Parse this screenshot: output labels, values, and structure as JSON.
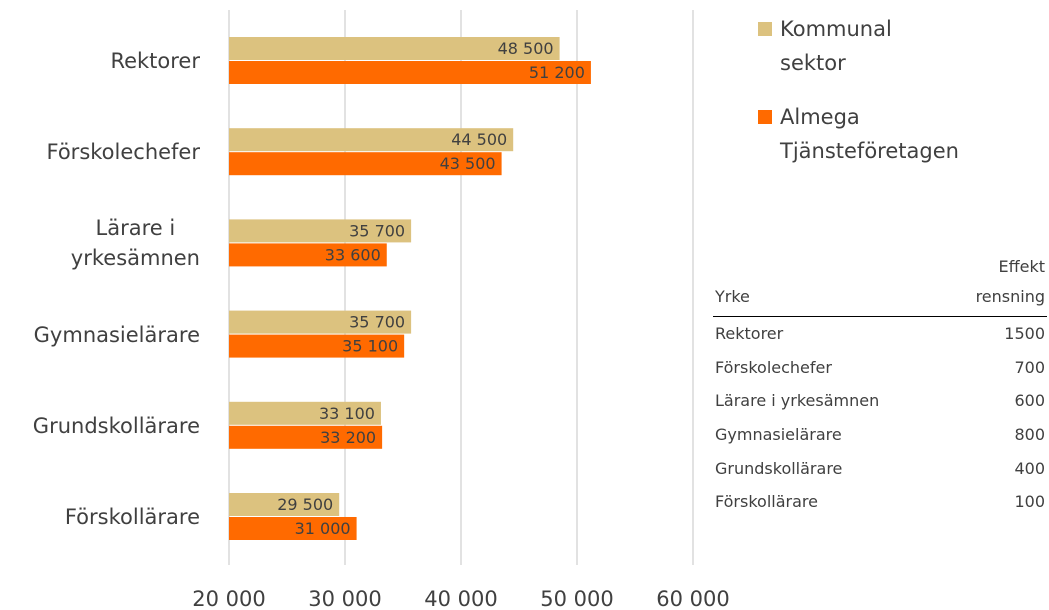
{
  "chart_data": {
    "type": "hbar",
    "categories": [
      "Rektorer",
      "Förskolechefer",
      "Lärare i yrkesämnen",
      "Gymnasielärare",
      "Grundskollärare",
      "Förskollärare"
    ],
    "series": [
      {
        "name": "Kommunal sektor",
        "color": "#dcc27f",
        "values": [
          48500,
          44500,
          35700,
          35700,
          33100,
          29500
        ],
        "value_labels": [
          "48 500",
          "44 500",
          "35 700",
          "35 700",
          "33 100",
          "29 500"
        ]
      },
      {
        "name": "Almega Tjänsteföretagen",
        "color": "#ff6a00",
        "values": [
          51200,
          43500,
          33600,
          35100,
          33200,
          31000
        ],
        "value_labels": [
          "51 200",
          "43 500",
          "33 600",
          "35 100",
          "33 200",
          "31 000"
        ]
      }
    ],
    "xlim": [
      20000,
      60000
    ],
    "xticks": [
      {
        "value": 20000,
        "label": "20 000"
      },
      {
        "value": 30000,
        "label": "30 000"
      },
      {
        "value": 40000,
        "label": "40 000"
      },
      {
        "value": 50000,
        "label": "50 000"
      },
      {
        "value": 60000,
        "label": "60 000"
      }
    ],
    "grid": true
  },
  "table": {
    "columns": [
      "Yrke",
      "Effekt rensning"
    ],
    "rows": [
      [
        "Rektorer",
        1500
      ],
      [
        "Förskolechefer",
        700
      ],
      [
        "Lärare i yrkesämnen",
        600
      ],
      [
        "Gymnasielärare",
        800
      ],
      [
        "Grundskollärare",
        400
      ],
      [
        "Förskollärare",
        100
      ]
    ]
  }
}
